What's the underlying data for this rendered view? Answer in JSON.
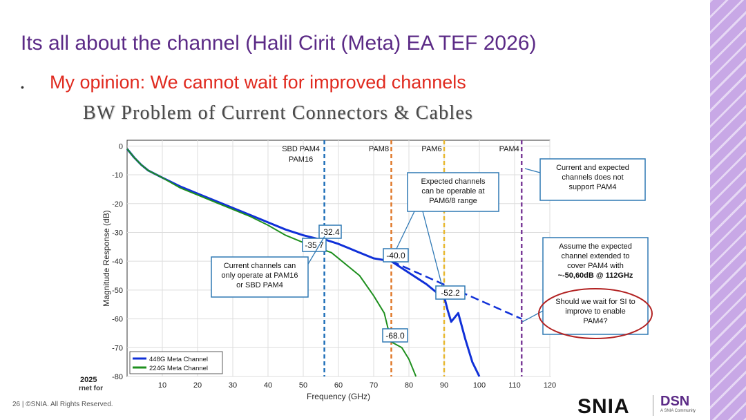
{
  "slide": {
    "title": "Its all about the channel (Halil Cirit (Meta) EA TEF 2026)",
    "bullet_dot": "•",
    "bullet": "My opinion: We cannot wait for improved channels",
    "subtitle": "BW Problem of Current Connectors & Cables",
    "footer": "26 | ©SNIA. All Rights Reserved.",
    "conf_logo_year": "2025",
    "conf_logo_text": "rnet for",
    "brand_snia": "SNIA",
    "brand_dsn": "DSN",
    "brand_dsn_sub": "A SNIA Community"
  },
  "colors": {
    "title": "#5b2a86",
    "bullet": "#e02a1f",
    "meta448": "#1030d8",
    "meta224": "#1e8f1e",
    "vline_sbd": "#1f6fb8",
    "vline_pam8": "#e0782a",
    "vline_pam6": "#e8b830",
    "vline_pam4": "#7a3a98",
    "callout_border": "#2f78b4",
    "ellipse": "#b22222"
  },
  "chart_data": {
    "type": "line",
    "xlabel": "Frequency (GHz)",
    "ylabel": "Magnitude Response (dB)",
    "xlim": [
      0,
      120
    ],
    "ylim": [
      -80,
      2
    ],
    "xticks": [
      10,
      20,
      30,
      40,
      50,
      60,
      70,
      80,
      90,
      100,
      110,
      120
    ],
    "yticks": [
      0,
      -10,
      -20,
      -30,
      -40,
      -50,
      -60,
      -70,
      -80
    ],
    "grid": true,
    "legend_position": "bottom-left",
    "series": [
      {
        "name": "448G Meta Channel",
        "color": "#1030d8",
        "x": [
          0,
          2,
          4,
          6,
          10,
          15,
          20,
          25,
          30,
          35,
          40,
          45,
          50,
          55,
          56,
          60,
          65,
          70,
          75,
          80,
          85,
          88,
          90,
          91,
          92,
          94,
          96,
          98,
          100
        ],
        "y": [
          -1,
          -4,
          -6.5,
          -8.5,
          -11,
          -14,
          -16.5,
          -19,
          -21.5,
          -24,
          -26.5,
          -29,
          -31,
          -32.5,
          -32.4,
          -34,
          -36.5,
          -39,
          -40,
          -44,
          -48,
          -51,
          -52.2,
          -57,
          -61,
          -58,
          -67,
          -75,
          -80
        ]
      },
      {
        "name": "224G Meta Channel",
        "color": "#1e8f1e",
        "x": [
          0,
          2,
          4,
          6,
          10,
          15,
          20,
          25,
          30,
          35,
          40,
          45,
          50,
          55,
          58,
          62,
          66,
          70,
          73,
          75,
          78,
          80,
          82
        ],
        "y": [
          -1,
          -4,
          -6.5,
          -8.5,
          -11,
          -14.5,
          -17,
          -19.5,
          -22,
          -24.5,
          -27.5,
          -31,
          -33.5,
          -35.7,
          -37,
          -41,
          -45,
          -52,
          -58,
          -68,
          -70,
          -74,
          -80
        ]
      }
    ],
    "extrapolation": {
      "name": "expected extension",
      "x": [
        75,
        112
      ],
      "y": [
        -40,
        -60
      ],
      "style": "dashed"
    },
    "vertical_lines": [
      {
        "x": 56,
        "label_line1": "SBD PAM4",
        "label_line2": "PAM16",
        "color": "#1f6fb8"
      },
      {
        "x": 75,
        "label_line1": "PAM8",
        "label_line2": "",
        "color": "#e0782a"
      },
      {
        "x": 90,
        "label_line1": "PAM6",
        "label_line2": "",
        "color": "#e8b830"
      },
      {
        "x": 112,
        "label_line1": "PAM4",
        "label_line2": "",
        "color": "#7a3a98"
      }
    ],
    "value_labels": [
      "-32.4",
      "-35.7",
      "-40.0",
      "-52.2",
      "-68.0"
    ],
    "annotations": {
      "current_channels": [
        "Current channels can",
        "only operate at PAM16",
        "or SBD PAM4"
      ],
      "expected_channels": [
        "Expected channels",
        "can be operable at",
        "PAM6/8 range"
      ],
      "not_support": [
        "Current and expected",
        "channels does not",
        "support PAM4"
      ],
      "assume": [
        "Assume the expected",
        "channel extended to",
        "cover PAM4 with"
      ],
      "assume_bold": "~-50,60dB @ 112GHz",
      "question": [
        "Should we wait for SI to",
        "improve to enable",
        "PAM4?"
      ]
    }
  }
}
